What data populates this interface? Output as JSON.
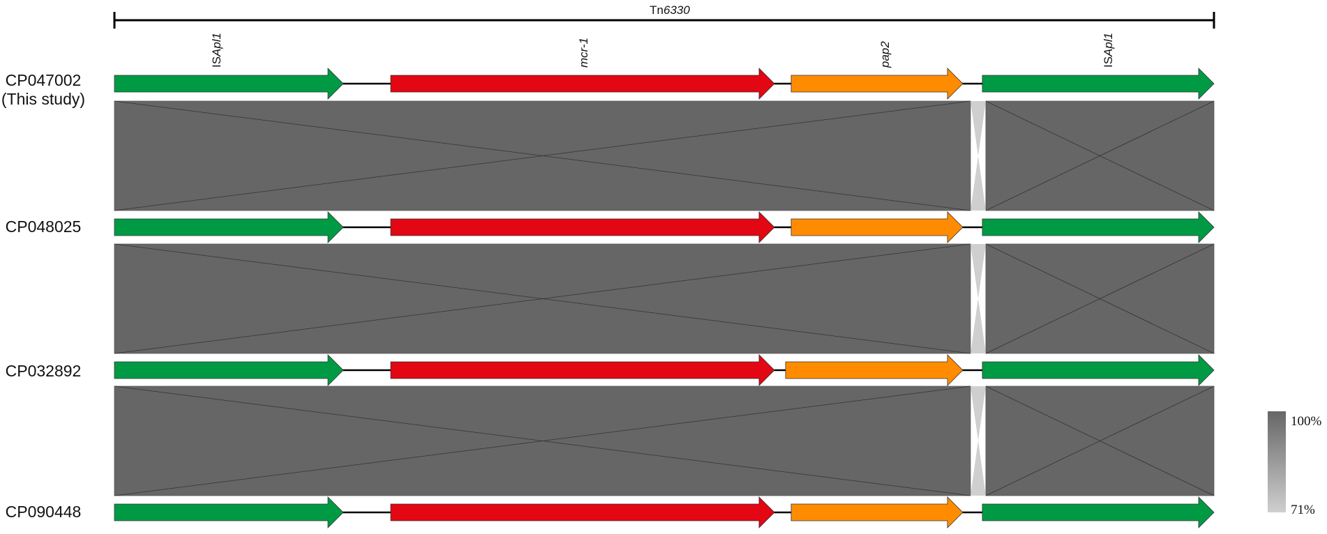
{
  "transposon": {
    "prefix": "Tn",
    "number": "6330"
  },
  "gene_labels": [
    {
      "prefix": "IS",
      "name": "Apl1"
    },
    {
      "prefix": "",
      "name": "mcr-1"
    },
    {
      "prefix": "",
      "name": "pap2"
    },
    {
      "prefix": "IS",
      "name": "Apl1"
    }
  ],
  "tracks": [
    {
      "accession": "CP047002",
      "note": "(This study)"
    },
    {
      "accession": "CP048025",
      "note": ""
    },
    {
      "accession": "CP032892",
      "note": ""
    },
    {
      "accession": "CP090448",
      "note": ""
    }
  ],
  "gene_colors": {
    "ISApl1": "#009a44",
    "mcr-1": "#e30613",
    "pap2": "#ff8c00"
  },
  "identity_colors": {
    "high": "#666666",
    "low": "#cfcfcf"
  },
  "legend": {
    "max_label": "100%",
    "min_label": "71%"
  }
}
